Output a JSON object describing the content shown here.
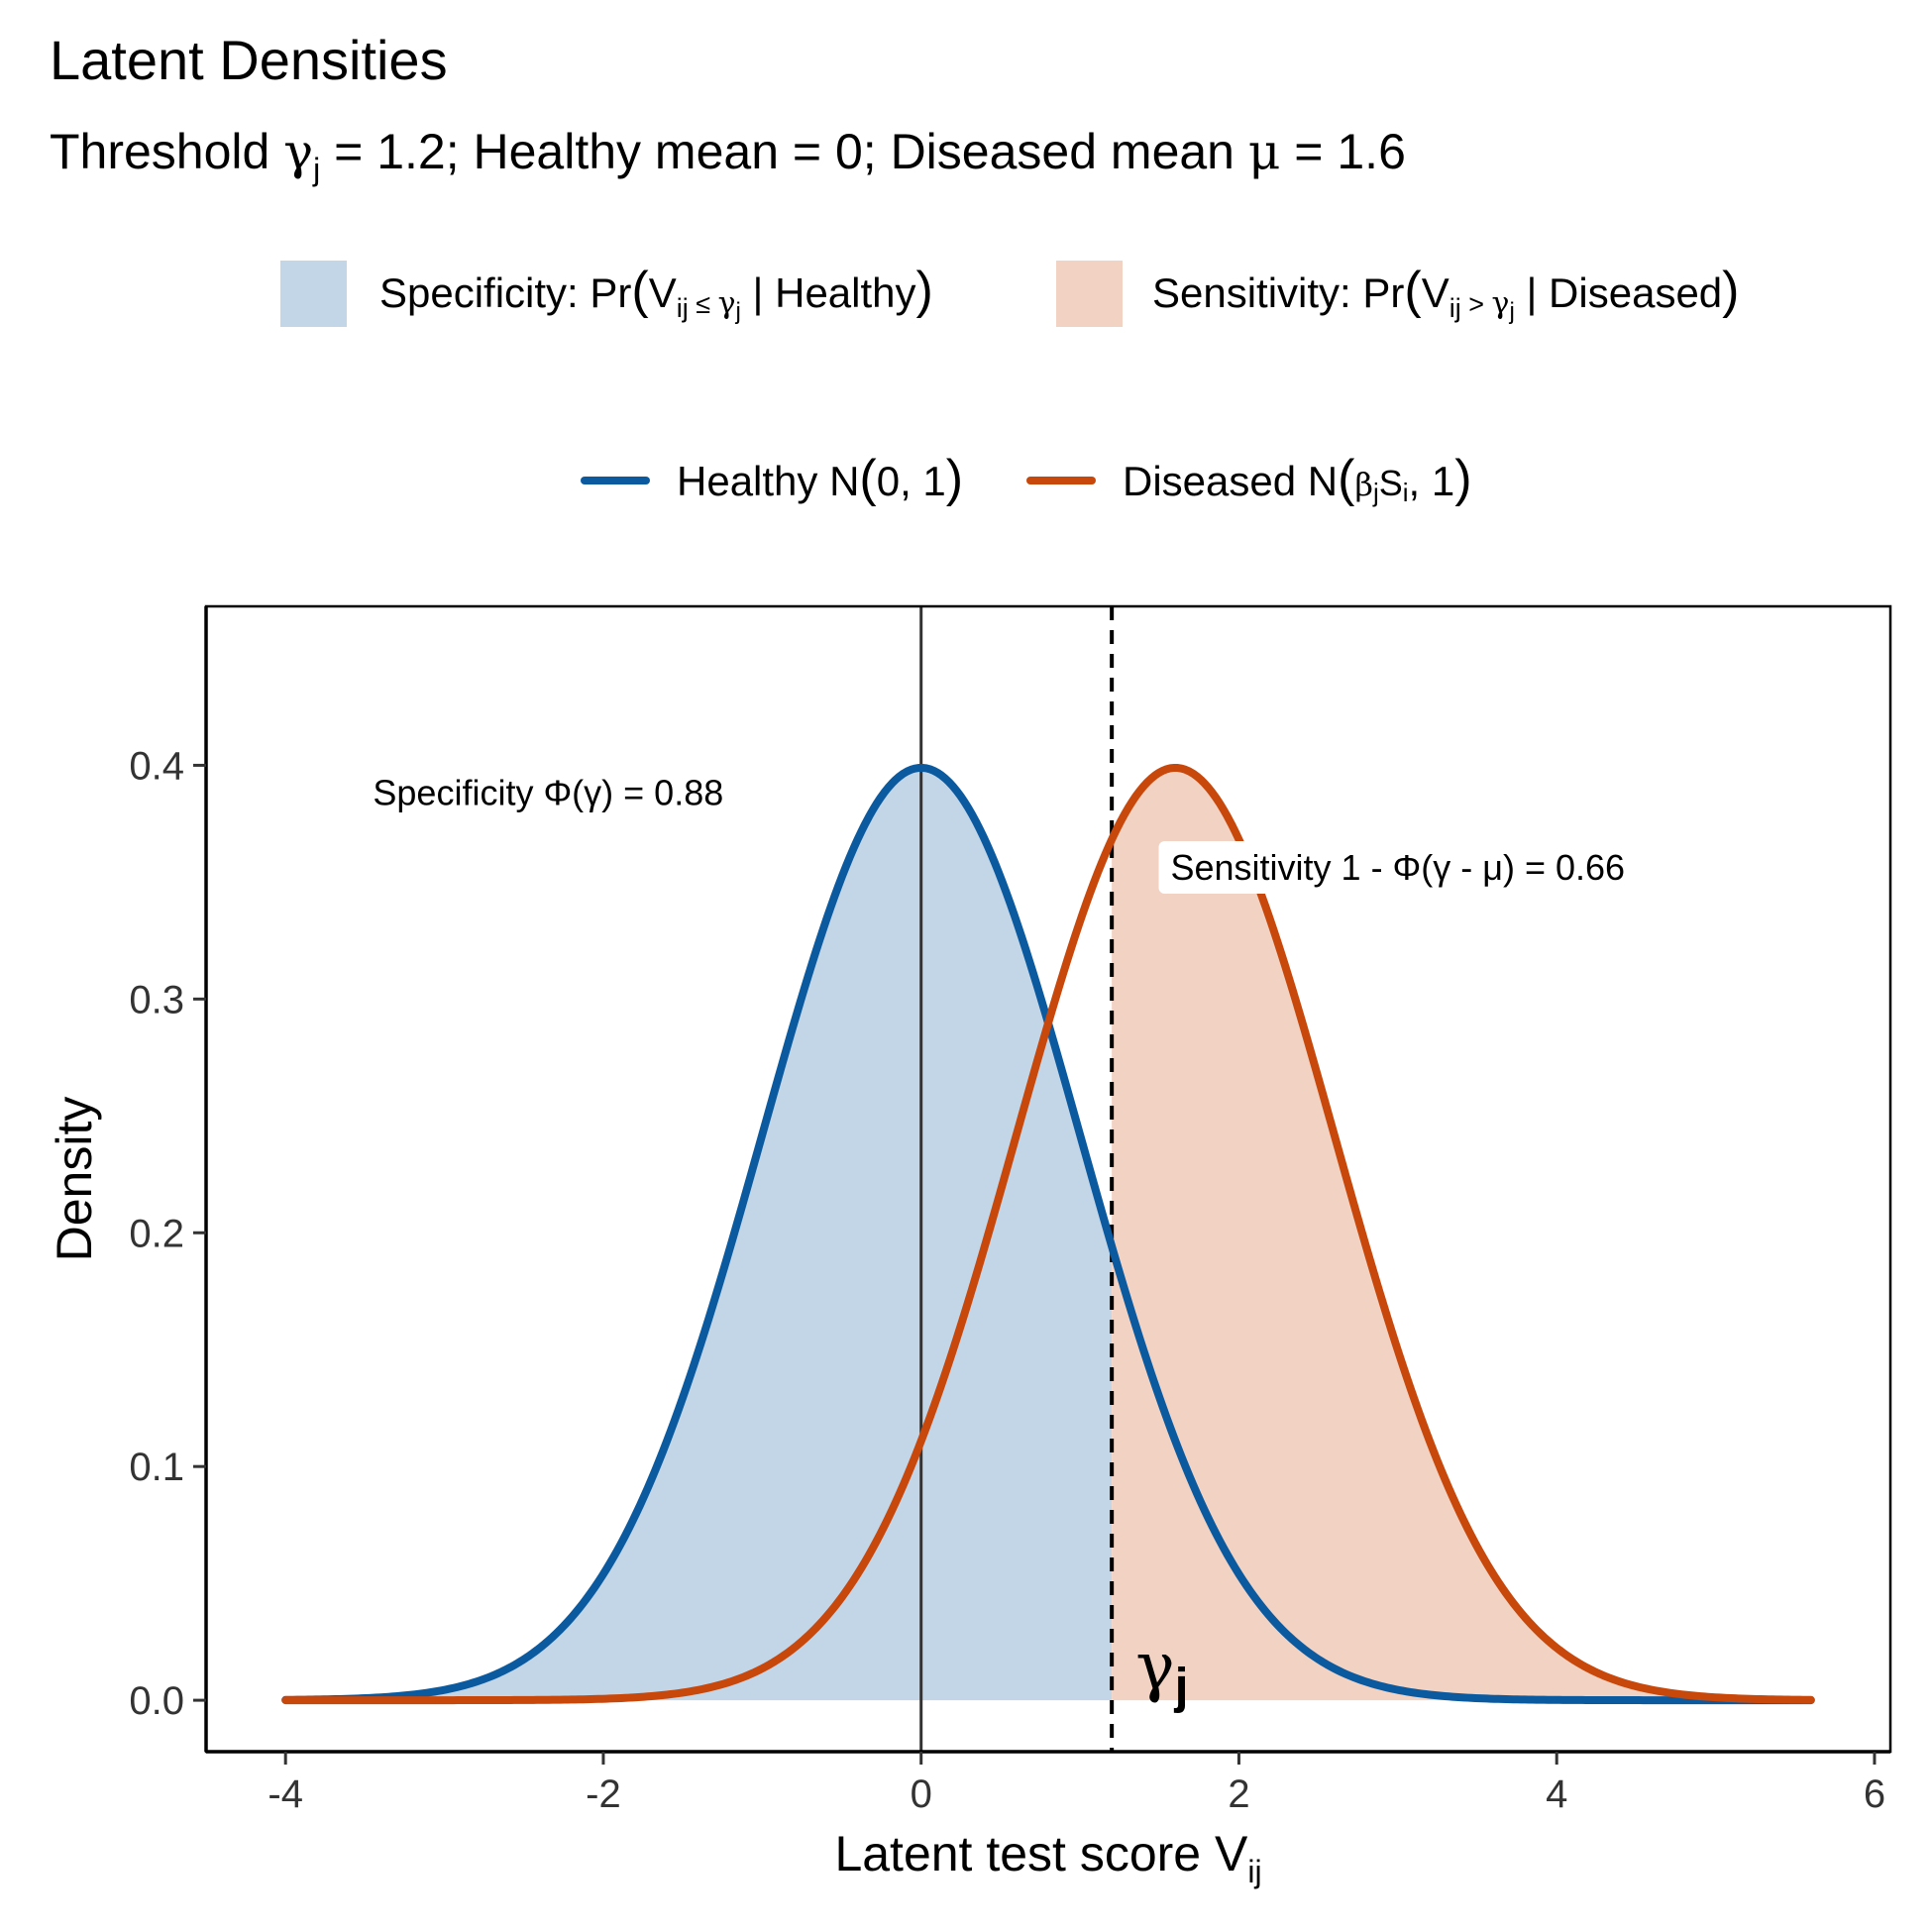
{
  "chart_data": {
    "type": "area",
    "title": "Latent Densities",
    "subtitle": {
      "prefix": "Threshold ",
      "gamma_symbol": "γ",
      "gamma_subscript": "j",
      "rest1": " = 1.2; Healthy mean = 0; Diseased mean ",
      "mu_symbol": "μ",
      "rest2": " = 1.6"
    },
    "xlabel": {
      "text": "Latent test score  V",
      "subscript": "ij"
    },
    "ylabel": "Density",
    "xlim": [
      -4.5,
      6.1
    ],
    "ylim": [
      -0.022,
      0.468
    ],
    "x_ticks": [
      -4,
      -2,
      0,
      2,
      4,
      6
    ],
    "x_tick_labels": [
      "-4",
      "-2",
      "0",
      "2",
      "4",
      "6"
    ],
    "y_ticks": [
      0.0,
      0.1,
      0.2,
      0.3,
      0.4
    ],
    "y_tick_labels": [
      "0.0",
      "0.1",
      "0.2",
      "0.3",
      "0.4"
    ],
    "x_range": [
      -4,
      5.6
    ],
    "threshold": 1.2,
    "zero_line": 0,
    "grid": false,
    "legend_position": "top",
    "series": [
      {
        "name": "Healthy N(0, 1)",
        "mean": 0,
        "sd": 1,
        "color": "#0b5aa0"
      },
      {
        "name": "Diseased N(βjSi, 1)",
        "mean": 1.6,
        "sd": 1,
        "color": "#c8470b"
      }
    ],
    "fills": [
      {
        "name": "Specificity",
        "series": 0,
        "from": -4,
        "to": 1.2,
        "color": "#c3d6e8"
      },
      {
        "name": "Sensitivity",
        "series": 1,
        "from": 1.2,
        "to": 5.6,
        "color": "#f2d2c2"
      }
    ],
    "fill_legend": [
      {
        "label_prefix": "Specificity:  Pr",
        "open": "(",
        "v": "V",
        "v_sub": "ij",
        "op": " ≤ ",
        "g": "γ",
        "g_sub": "j",
        "rest": " | Healthy",
        "close": ")"
      },
      {
        "label_prefix": "Sensitivity: Pr",
        "open": "(",
        "v": "V",
        "v_sub": "ij",
        "op": " > ",
        "g": "γ",
        "g_sub": "j",
        "rest": " | Diseased",
        "close": ")"
      }
    ],
    "line_legend": [
      {
        "prefix": "Healthy N",
        "open": "(",
        "inner": "0, 1",
        "close": ")"
      },
      {
        "prefix": "Diseased N",
        "open": "(",
        "b": "β",
        "b_sub": "j",
        "s": "S",
        "s_sub": "i",
        "tail": ", 1",
        "close": ")"
      }
    ],
    "annotations": [
      {
        "text": "Specificity  Φ(γ) = 0.88",
        "x": -3.45,
        "y": 0.383
      },
      {
        "text": "Sensitivity  1 - Φ(γ - μ) = 0.66",
        "x": 1.57,
        "y": 0.351
      }
    ],
    "gamma_label": {
      "symbol": "γ",
      "subscript": "j",
      "x": 1.35,
      "y": 0.005
    }
  }
}
